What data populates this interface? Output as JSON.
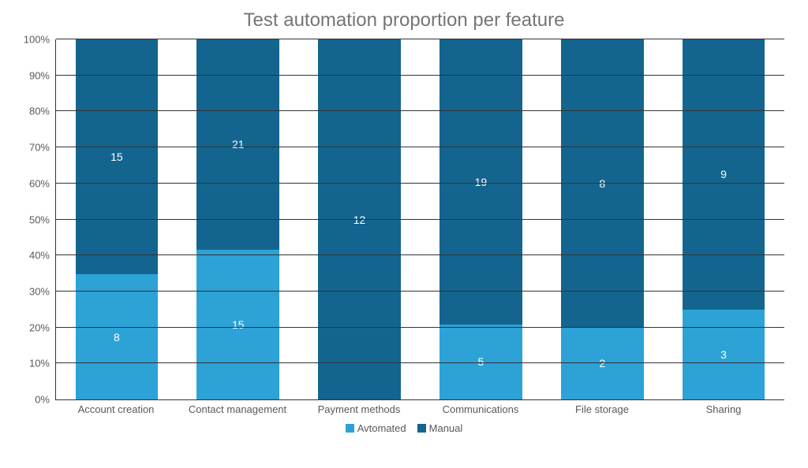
{
  "chart": {
    "type": "stacked-bar-100pct",
    "title": "Test automation proportion per feature",
    "title_fontsize": 24,
    "title_color": "#757575",
    "background_color": "#ffffff",
    "axis_color": "#333333",
    "grid_color": "#333333",
    "tick_label_color": "#595959",
    "tick_label_fontsize": 13,
    "data_label_color": "#ffffff",
    "data_label_fontsize": 14,
    "bar_width_ratio": 0.68,
    "y_axis": {
      "min": 0,
      "max": 100,
      "tick_step": 10,
      "tick_suffix": "%",
      "ticks": [
        0,
        10,
        20,
        30,
        40,
        50,
        60,
        70,
        80,
        90,
        100
      ]
    },
    "series": [
      {
        "key": "automated",
        "label": "Avtomated",
        "color": "#2ca2d6"
      },
      {
        "key": "manual",
        "label": "Manual",
        "color": "#13658f"
      }
    ],
    "categories": [
      {
        "label": "Account creation",
        "automated": 8,
        "manual": 15
      },
      {
        "label": "Contact management",
        "automated": 15,
        "manual": 21
      },
      {
        "label": "Payment methods",
        "automated": 0,
        "manual": 12
      },
      {
        "label": "Communications",
        "automated": 5,
        "manual": 19
      },
      {
        "label": "File storage",
        "automated": 2,
        "manual": 8
      },
      {
        "label": "Sharing",
        "automated": 3,
        "manual": 9
      }
    ]
  }
}
